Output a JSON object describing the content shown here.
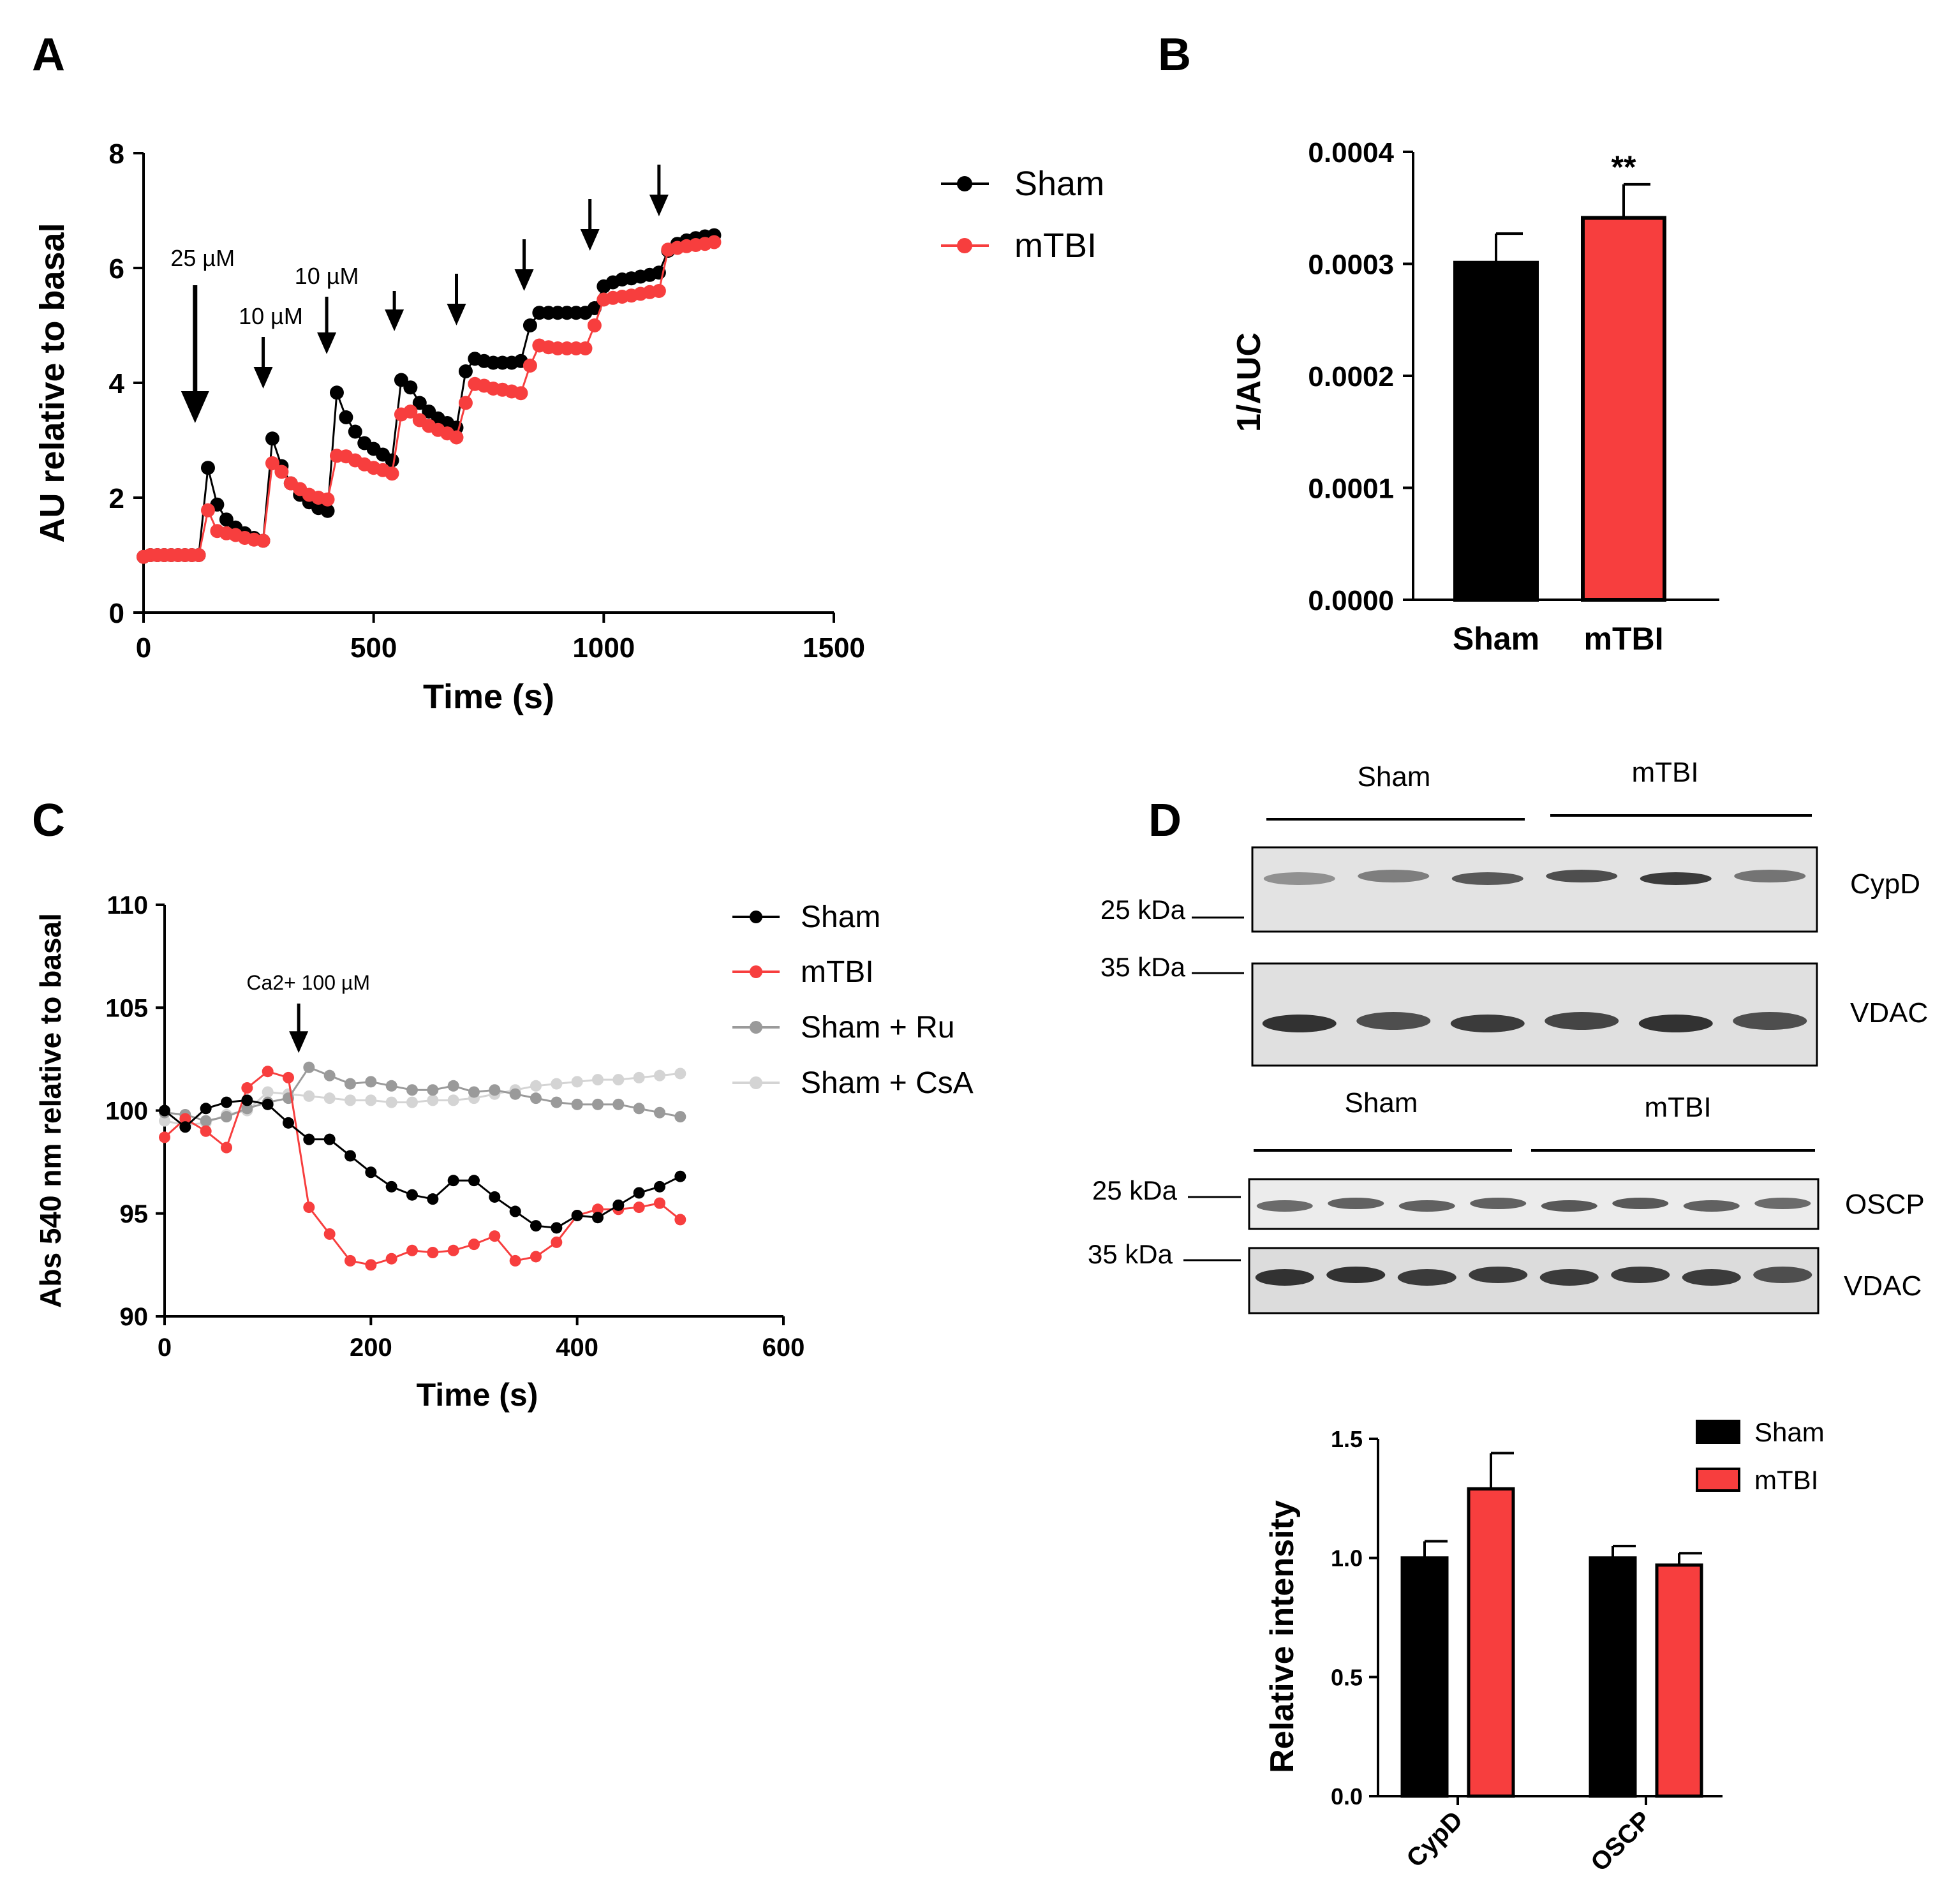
{
  "colors": {
    "sham": "#000000",
    "mtbi": "#f73e3e",
    "ru": "#9a9a9a",
    "csa": "#d4d4d4",
    "axis": "#000000",
    "blot_bg": "#e2e2e2",
    "band": "#222222"
  },
  "panels": {
    "A": "A",
    "B": "B",
    "C": "C",
    "D": "D"
  },
  "chart_data": [
    {
      "id": "A",
      "type": "line",
      "xlabel": "Time (s)",
      "ylabel": "AU relative to basal",
      "xlim": [
        0,
        1500
      ],
      "ylim": [
        0,
        8
      ],
      "xticks": [
        0,
        500,
        1000,
        1500
      ],
      "yticks": [
        0,
        2,
        4,
        6,
        8
      ],
      "legend": [
        "Sham",
        "mTBI"
      ],
      "legend_position": "top-right",
      "annotations": [
        {
          "text": "25 µM",
          "x": 112,
          "y_tip": 3.3,
          "y_tail": 5.7,
          "big": true
        },
        {
          "text": "10 µM",
          "x": 260,
          "y_tip": 3.9,
          "y_tail": 4.8
        },
        {
          "text": "10 µM",
          "x": 398,
          "y_tip": 4.5,
          "y_tail": 5.5
        },
        {
          "x": 545,
          "y_tip": 4.9,
          "y_tail": 5.6
        },
        {
          "x": 680,
          "y_tip": 5.0,
          "y_tail": 5.9
        },
        {
          "x": 827,
          "y_tip": 5.6,
          "y_tail": 6.5
        },
        {
          "x": 970,
          "y_tip": 6.3,
          "y_tail": 7.2
        },
        {
          "x": 1120,
          "y_tip": 6.9,
          "y_tail": 7.8
        }
      ],
      "series": [
        {
          "name": "Sham",
          "x": [
            0,
            15,
            30,
            45,
            60,
            75,
            90,
            105,
            120,
            140,
            160,
            180,
            200,
            220,
            240,
            260,
            280,
            300,
            320,
            340,
            360,
            380,
            400,
            420,
            440,
            460,
            480,
            500,
            520,
            540,
            560,
            580,
            600,
            620,
            640,
            660,
            680,
            700,
            720,
            740,
            760,
            780,
            800,
            820,
            840,
            860,
            880,
            900,
            920,
            940,
            960,
            980,
            1000,
            1020,
            1040,
            1060,
            1080,
            1100,
            1120,
            1140,
            1160,
            1180,
            1200,
            1220,
            1240
          ],
          "y": [
            0.97,
            1.0,
            1.0,
            1.0,
            1.0,
            1.0,
            1.0,
            1.0,
            1.0,
            2.52,
            1.88,
            1.62,
            1.48,
            1.38,
            1.3,
            1.25,
            3.03,
            2.55,
            2.25,
            2.05,
            1.92,
            1.82,
            1.77,
            3.83,
            3.4,
            3.15,
            2.95,
            2.85,
            2.75,
            2.65,
            4.05,
            3.92,
            3.65,
            3.5,
            3.38,
            3.3,
            3.22,
            4.2,
            4.42,
            4.38,
            4.35,
            4.35,
            4.35,
            4.38,
            5.0,
            5.22,
            5.22,
            5.22,
            5.22,
            5.22,
            5.22,
            5.3,
            5.68,
            5.75,
            5.8,
            5.82,
            5.85,
            5.88,
            5.92,
            6.3,
            6.42,
            6.48,
            6.52,
            6.55,
            6.57
          ]
        },
        {
          "name": "mTBI",
          "x": [
            0,
            15,
            30,
            45,
            60,
            75,
            90,
            105,
            120,
            140,
            160,
            180,
            200,
            220,
            240,
            260,
            280,
            300,
            320,
            340,
            360,
            380,
            400,
            420,
            440,
            460,
            480,
            500,
            520,
            540,
            560,
            580,
            600,
            620,
            640,
            660,
            680,
            700,
            720,
            740,
            760,
            780,
            800,
            820,
            840,
            860,
            880,
            900,
            920,
            940,
            960,
            980,
            1000,
            1020,
            1040,
            1060,
            1080,
            1100,
            1120,
            1140,
            1160,
            1180,
            1200,
            1220,
            1240
          ],
          "y": [
            0.97,
            1.0,
            1.0,
            1.0,
            1.0,
            1.0,
            1.0,
            1.0,
            1.0,
            1.78,
            1.42,
            1.38,
            1.35,
            1.3,
            1.27,
            1.25,
            2.6,
            2.45,
            2.25,
            2.15,
            2.05,
            2.0,
            1.97,
            2.73,
            2.72,
            2.65,
            2.58,
            2.52,
            2.48,
            2.42,
            3.45,
            3.5,
            3.35,
            3.25,
            3.18,
            3.12,
            3.05,
            3.65,
            3.98,
            3.95,
            3.9,
            3.88,
            3.85,
            3.82,
            4.3,
            4.65,
            4.62,
            4.6,
            4.6,
            4.6,
            4.6,
            5.0,
            5.45,
            5.48,
            5.5,
            5.52,
            5.55,
            5.58,
            5.6,
            6.32,
            6.35,
            6.38,
            6.4,
            6.42,
            6.45
          ]
        }
      ]
    },
    {
      "id": "B",
      "type": "bar",
      "xlabel": "",
      "ylabel": "1/AUC",
      "ylim": [
        0,
        0.0004
      ],
      "yticks": [
        "0.0000",
        "0.0001",
        "0.0002",
        "0.0003",
        "0.0004"
      ],
      "categories": [
        "Sham",
        "mTBI"
      ],
      "values": [
        0.000301,
        0.000341
      ],
      "errors": [
        2.6e-05,
        3e-05
      ],
      "significance": "**"
    },
    {
      "id": "C",
      "type": "line",
      "xlabel": "Time (s)",
      "ylabel": "Abs 540 nm relative to basal",
      "xlim": [
        0,
        600
      ],
      "ylim": [
        90,
        110
      ],
      "xticks": [
        0,
        200,
        400,
        600
      ],
      "yticks": [
        90,
        95,
        100,
        105,
        110
      ],
      "legend": [
        "Sham",
        "mTBI",
        "Sham + Ru",
        "Sham + CsA"
      ],
      "legend_position": "top-right",
      "annotations": [
        {
          "text": "Ca2+ 100 µM",
          "x": 130,
          "y_tip": 102.8,
          "y_tail": 105.2
        }
      ],
      "series": [
        {
          "name": "Sham",
          "x": [
            0,
            20,
            40,
            60,
            80,
            100,
            120,
            140,
            160,
            180,
            200,
            220,
            240,
            260,
            280,
            300,
            320,
            340,
            360,
            380,
            400,
            420,
            440,
            460,
            480,
            500
          ],
          "y": [
            100.0,
            99.2,
            100.1,
            100.4,
            100.5,
            100.3,
            99.4,
            98.6,
            98.6,
            97.8,
            97.0,
            96.3,
            95.9,
            95.7,
            96.6,
            96.6,
            95.8,
            95.1,
            94.4,
            94.3,
            94.9,
            94.8,
            95.4,
            96.0,
            96.3,
            96.8
          ]
        },
        {
          "name": "mTBI",
          "x": [
            0,
            20,
            40,
            60,
            80,
            100,
            120,
            140,
            160,
            180,
            200,
            220,
            240,
            260,
            280,
            300,
            320,
            340,
            360,
            380,
            400,
            420,
            440,
            460,
            480,
            500
          ],
          "y": [
            98.7,
            99.6,
            99.0,
            98.2,
            101.1,
            101.9,
            101.6,
            95.3,
            94.0,
            92.7,
            92.5,
            92.8,
            93.2,
            93.1,
            93.2,
            93.5,
            93.9,
            92.7,
            92.9,
            93.6,
            94.9,
            95.2,
            95.2,
            95.3,
            95.5,
            94.7
          ]
        },
        {
          "name": "Sham + Ru",
          "x": [
            0,
            20,
            40,
            60,
            80,
            100,
            120,
            140,
            160,
            180,
            200,
            220,
            240,
            260,
            280,
            300,
            320,
            340,
            360,
            380,
            400,
            420,
            440,
            460,
            480,
            500
          ],
          "y": [
            99.9,
            99.8,
            99.5,
            99.7,
            100.1,
            100.4,
            100.6,
            102.1,
            101.7,
            101.3,
            101.4,
            101.2,
            101.0,
            101.0,
            101.2,
            100.9,
            101.0,
            100.8,
            100.6,
            100.4,
            100.3,
            100.3,
            100.3,
            100.1,
            99.9,
            99.7
          ]
        },
        {
          "name": "Sham + CsA",
          "x": [
            0,
            20,
            40,
            60,
            80,
            100,
            120,
            140,
            160,
            180,
            200,
            220,
            240,
            260,
            280,
            300,
            320,
            340,
            360,
            380,
            400,
            420,
            440,
            460,
            480,
            500
          ],
          "y": [
            99.5,
            99.3,
            99.4,
            99.8,
            100.0,
            100.9,
            100.8,
            100.7,
            100.6,
            100.5,
            100.5,
            100.4,
            100.4,
            100.5,
            100.5,
            100.6,
            100.8,
            101.0,
            101.2,
            101.3,
            101.4,
            101.5,
            101.5,
            101.6,
            101.7,
            101.8
          ]
        }
      ]
    },
    {
      "id": "D",
      "type": "bar",
      "xlabel": "",
      "ylabel": "Relative intensity",
      "ylim": [
        0,
        1.5
      ],
      "yticks": [
        "0.0",
        "0.5",
        "1.0",
        "1.5"
      ],
      "categories": [
        "CypD",
        "OSCP"
      ],
      "series": [
        {
          "name": "Sham",
          "values": [
            1.0,
            1.0
          ],
          "errors": [
            0.07,
            0.05
          ]
        },
        {
          "name": "mTBI",
          "values": [
            1.29,
            0.97
          ],
          "errors": [
            0.15,
            0.05
          ]
        }
      ],
      "legend_position": "top-right"
    }
  ],
  "blots": {
    "top": {
      "group_labels": [
        "Sham",
        "mTBI"
      ],
      "markers": [
        "25 kDa",
        "35 kDa"
      ],
      "rows": [
        {
          "label": "CypD",
          "intensities": [
            0.45,
            0.55,
            0.75,
            0.8,
            0.9,
            0.6
          ]
        },
        {
          "label": "VDAC",
          "intensities": [
            0.95,
            0.8,
            0.9,
            0.85,
            0.95,
            0.8
          ]
        }
      ]
    },
    "bottom": {
      "group_labels": [
        "Sham",
        "mTBI"
      ],
      "markers": [
        "25 kDa",
        "35 kDa"
      ],
      "rows": [
        {
          "label": "OSCP",
          "intensities": [
            0.65,
            0.7,
            0.7,
            0.7,
            0.75,
            0.75,
            0.7,
            0.65
          ]
        },
        {
          "label": "VDAC",
          "intensities": [
            0.95,
            0.95,
            0.9,
            0.9,
            0.9,
            0.9,
            0.9,
            0.8
          ]
        }
      ]
    }
  }
}
